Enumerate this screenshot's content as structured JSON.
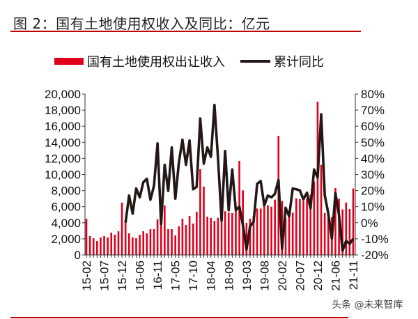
{
  "title": "图 2：国有土地使用权收入及同比：亿元",
  "watermark": "头条 @未来智库",
  "colors": {
    "bar": "#e0001b",
    "line": "#231815",
    "rule": "#c00000"
  },
  "chart_data": {
    "type": "bar+line",
    "title": "",
    "legend_placement": "top",
    "grid": false,
    "categories": [
      "15-02",
      "15-03",
      "15-04",
      "15-05",
      "15-06",
      "15-07",
      "15-08",
      "15-09",
      "15-10",
      "15-11",
      "15-12",
      "16-02",
      "16-03",
      "16-04",
      "16-05",
      "16-06",
      "16-07",
      "16-08",
      "16-09",
      "16-10",
      "16-11",
      "16-12",
      "17-02",
      "17-03",
      "17-04",
      "17-05",
      "17-06",
      "17-07",
      "17-08",
      "17-09",
      "17-10",
      "17-11",
      "17-12",
      "18-02",
      "18-03",
      "18-04",
      "18-05",
      "18-06",
      "18-07",
      "18-08",
      "18-09",
      "18-10",
      "18-11",
      "18-12",
      "19-02",
      "19-03",
      "19-04",
      "19-05",
      "19-06",
      "19-07",
      "19-08",
      "19-09",
      "19-10",
      "19-11",
      "19-12",
      "20-02",
      "20-03",
      "20-04",
      "20-05",
      "20-06",
      "20-07",
      "20-08",
      "20-09",
      "20-10",
      "20-11",
      "20-12",
      "21-02",
      "21-03",
      "21-04",
      "21-05",
      "21-06",
      "21-07",
      "21-08",
      "21-09",
      "21-10",
      "21-11"
    ],
    "x_tick_labels": [
      "15-02",
      "15-07",
      "15-12",
      "16-06",
      "16-11",
      "17-05",
      "17-10",
      "18-04",
      "18-09",
      "19-03",
      "19-08",
      "20-02",
      "20-07",
      "20-12",
      "21-06",
      "21-11"
    ],
    "left_axis": {
      "range": [
        0,
        20000
      ],
      "ticks": [
        "0",
        "2,000",
        "4,000",
        "6,000",
        "8,000",
        "10,000",
        "12,000",
        "14,000",
        "16,000",
        "18,000",
        "20,000"
      ]
    },
    "right_axis": {
      "range": [
        -20,
        80
      ],
      "ticks": [
        "-20%",
        "-10%",
        "0%",
        "10%",
        "20%",
        "30%",
        "40%",
        "50%",
        "60%",
        "70%",
        "80%"
      ]
    },
    "series": [
      {
        "name": "国有土地使用权出让收入",
        "type": "bar",
        "axis": "left",
        "values": [
          4500,
          2340,
          2080,
          1730,
          2170,
          2340,
          2170,
          2770,
          2510,
          2940,
          6500,
          3980,
          2680,
          2170,
          2080,
          2510,
          2940,
          2680,
          3200,
          3200,
          4420,
          4070,
          6150,
          3200,
          3200,
          2420,
          3550,
          4500,
          3720,
          4850,
          3900,
          5370,
          10650,
          8490,
          4760,
          4590,
          4240,
          4620,
          5140,
          5430,
          5250,
          5200,
          5490,
          11690,
          8020,
          3980,
          4500,
          4850,
          5770,
          5770,
          6000,
          6180,
          6000,
          6870,
          14810,
          6700,
          4560,
          4730,
          5250,
          7040,
          6930,
          6750,
          6990,
          7450,
          9120,
          19050,
          11200,
          5200,
          4700,
          4680,
          8310,
          6990,
          5660,
          6520,
          5720,
          8260
        ]
      },
      {
        "name": "累计同比",
        "type": "line",
        "axis": "right",
        "values": [
          null,
          null,
          null,
          null,
          null,
          null,
          null,
          null,
          null,
          null,
          null,
          0,
          16.9,
          5.7,
          21.3,
          15.8,
          25.2,
          27.3,
          14.3,
          23,
          49.3,
          -0.8,
          36,
          19.8,
          46.8,
          15,
          37.4,
          51.6,
          36,
          51.1,
          20.8,
          22.3,
          64.8,
          36.7,
          46.8,
          41,
          73.2,
          40,
          1.3,
          44.6,
          7.8,
          33.1,
          7.8,
          10,
          -1.5,
          -16.7,
          -2.3,
          0.6,
          24.2,
          25.9,
          10.7,
          16.9,
          15.8,
          18,
          26.6,
          -16.2,
          9.3,
          4,
          21.3,
          20.8,
          20.1,
          14.6,
          18.7,
          8.9,
          33.1,
          28.1,
          67.4,
          17.2,
          5.7,
          -9.9,
          18.4,
          5,
          -17.4,
          -11.3,
          -13.1,
          -9.9
        ]
      }
    ]
  }
}
